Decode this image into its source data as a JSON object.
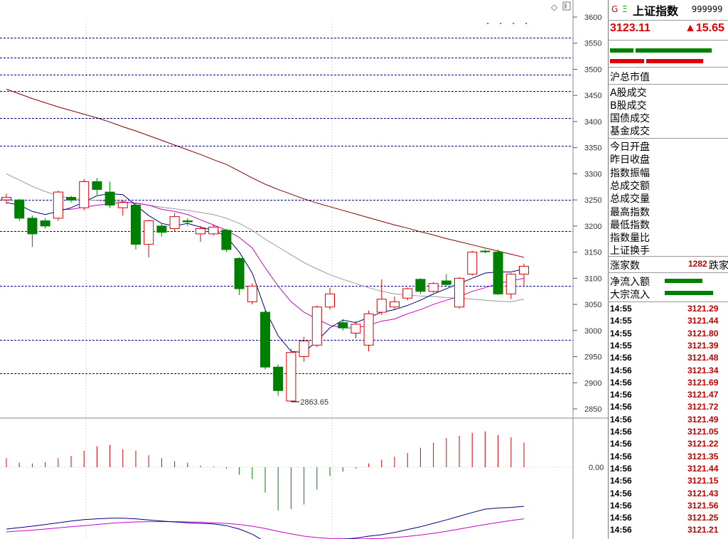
{
  "header": {
    "g_icon": "G",
    "e_icon": "Ξ",
    "name": "上证指数",
    "code": "999999",
    "price": "3123.11",
    "change": "▲15.65"
  },
  "labels": {
    "market_cap": "沪总市值",
    "turnover_group": [
      "A股成交",
      "B股成交",
      "国债成交",
      "基金成交"
    ],
    "stats_group": [
      "今日开盘",
      "昨日收盘",
      "指数振幅",
      "总成交额",
      "总成交量",
      "最高指数",
      "最低指数",
      "指数量比",
      "上证换手"
    ],
    "advancers": "涨家数",
    "advancers_value": "1282",
    "decliners_label": "跌家",
    "net_inflow": "净流入额",
    "block_inflow": "大宗流入"
  },
  "ticks": [
    {
      "time": "14:55",
      "price": "3121.29"
    },
    {
      "time": "14:55",
      "price": "3121.44"
    },
    {
      "time": "14:55",
      "price": "3121.80"
    },
    {
      "time": "14:55",
      "price": "3121.39"
    },
    {
      "time": "14:56",
      "price": "3121.48"
    },
    {
      "time": "14:56",
      "price": "3121.34"
    },
    {
      "time": "14:56",
      "price": "3121.69"
    },
    {
      "time": "14:56",
      "price": "3121.47"
    },
    {
      "time": "14:56",
      "price": "3121.72"
    },
    {
      "time": "14:56",
      "price": "3121.49"
    },
    {
      "time": "14:56",
      "price": "3121.05"
    },
    {
      "time": "14:56",
      "price": "3121.22"
    },
    {
      "time": "14:56",
      "price": "3121.35"
    },
    {
      "time": "14:56",
      "price": "3121.44"
    },
    {
      "time": "14:56",
      "price": "3121.15"
    },
    {
      "time": "14:56",
      "price": "3121.43"
    },
    {
      "time": "14:56",
      "price": "3121.56"
    },
    {
      "time": "14:56",
      "price": "3121.25"
    },
    {
      "time": "14:56",
      "price": "3121.21"
    }
  ],
  "colors": {
    "up": "#e00000",
    "down": "#008000",
    "ma5": "#000080",
    "ma10": "#cc00cc",
    "ma20": "#999999",
    "ma60": "#800000",
    "gridline": "#0000aa"
  },
  "chart_data": {
    "type": "candlestick",
    "y_axis": {
      "min": 2850,
      "max": 3600,
      "step": 50,
      "ticks": [
        "2850",
        "2900",
        "2950",
        "3000",
        "3050",
        "3100",
        "3150",
        "3200",
        "3250",
        "3300",
        "3350",
        "3400",
        "3450",
        "3500",
        "3550",
        "3600"
      ]
    },
    "low_annotation": "2863.65",
    "low_value": 2863.65,
    "horizontal_levels": [
      3560,
      3522,
      3490,
      3458,
      3407,
      3354,
      3250,
      3190,
      3086,
      2982,
      2918
    ],
    "candles": [
      {
        "o": 3250,
        "c": 3255,
        "h": 3262,
        "l": 3242
      },
      {
        "o": 3250,
        "c": 3215,
        "h": 3252,
        "l": 3210
      },
      {
        "o": 3215,
        "c": 3185,
        "h": 3220,
        "l": 3160
      },
      {
        "o": 3210,
        "c": 3200,
        "h": 3215,
        "l": 3195
      },
      {
        "o": 3215,
        "c": 3265,
        "h": 3268,
        "l": 3210
      },
      {
        "o": 3255,
        "c": 3250,
        "h": 3258,
        "l": 3245
      },
      {
        "o": 3235,
        "c": 3285,
        "h": 3290,
        "l": 3230
      },
      {
        "o": 3285,
        "c": 3270,
        "h": 3292,
        "l": 3260
      },
      {
        "o": 3265,
        "c": 3240,
        "h": 3285,
        "l": 3235
      },
      {
        "o": 3235,
        "c": 3245,
        "h": 3250,
        "l": 3220
      },
      {
        "o": 3240,
        "c": 3165,
        "h": 3242,
        "l": 3155
      },
      {
        "o": 3165,
        "c": 3210,
        "h": 3212,
        "l": 3140
      },
      {
        "o": 3200,
        "c": 3188,
        "h": 3205,
        "l": 3180
      },
      {
        "o": 3195,
        "c": 3218,
        "h": 3225,
        "l": 3190
      },
      {
        "o": 3210,
        "c": 3208,
        "h": 3215,
        "l": 3200
      },
      {
        "o": 3185,
        "c": 3195,
        "h": 3200,
        "l": 3170
      },
      {
        "o": 3185,
        "c": 3198,
        "h": 3203,
        "l": 3182
      },
      {
        "o": 3192,
        "c": 3155,
        "h": 3195,
        "l": 3150
      },
      {
        "o": 3138,
        "c": 3080,
        "h": 3140,
        "l": 3068
      },
      {
        "o": 3055,
        "c": 3085,
        "h": 3090,
        "l": 3050
      },
      {
        "o": 3035,
        "c": 2930,
        "h": 3040,
        "l": 2925
      },
      {
        "o": 2930,
        "c": 2885,
        "h": 2935,
        "l": 2875
      },
      {
        "o": 2865,
        "c": 2958,
        "h": 2965,
        "l": 2863.65
      },
      {
        "o": 2950,
        "c": 2980,
        "h": 2988,
        "l": 2940
      },
      {
        "o": 2972,
        "c": 3045,
        "h": 3048,
        "l": 2968
      },
      {
        "o": 3045,
        "c": 3070,
        "h": 3082,
        "l": 3040
      },
      {
        "o": 3015,
        "c": 3005,
        "h": 3022,
        "l": 3000
      },
      {
        "o": 2995,
        "c": 3012,
        "h": 3018,
        "l": 2985
      },
      {
        "o": 2972,
        "c": 3032,
        "h": 3038,
        "l": 2960
      },
      {
        "o": 3035,
        "c": 3060,
        "h": 3098,
        "l": 3030
      },
      {
        "o": 3045,
        "c": 3055,
        "h": 3065,
        "l": 3040
      },
      {
        "o": 3062,
        "c": 3080,
        "h": 3082,
        "l": 3058
      },
      {
        "o": 3098,
        "c": 3075,
        "h": 3100,
        "l": 3070
      },
      {
        "o": 3075,
        "c": 3090,
        "h": 3093,
        "l": 3072
      },
      {
        "o": 3095,
        "c": 3088,
        "h": 3108,
        "l": 3085
      },
      {
        "o": 3045,
        "c": 3100,
        "h": 3102,
        "l": 3042
      },
      {
        "o": 3108,
        "c": 3150,
        "h": 3153,
        "l": 3105
      },
      {
        "o": 3152,
        "c": 3151,
        "h": 3155,
        "l": 3148
      },
      {
        "o": 3150,
        "c": 3070,
        "h": 3155,
        "l": 3068
      },
      {
        "o": 3070,
        "c": 3108,
        "h": 3110,
        "l": 3060
      },
      {
        "o": 3108,
        "c": 3123,
        "h": 3128,
        "l": 3085
      }
    ],
    "ma5": [
      3245,
      3240,
      3228,
      3222,
      3228,
      3235,
      3246,
      3258,
      3262,
      3260,
      3240,
      3220,
      3205,
      3200,
      3205,
      3198,
      3192,
      3180,
      3150,
      3110,
      3040,
      2990,
      2960,
      2958,
      2980,
      3005,
      3020,
      3015,
      3025,
      3035,
      3040,
      3048,
      3058,
      3070,
      3080,
      3090,
      3100,
      3110,
      3112,
      3112,
      3118
    ],
    "ma10": [
      null,
      null,
      null,
      null,
      3232,
      3232,
      3236,
      3240,
      3242,
      3246,
      3244,
      3240,
      3232,
      3228,
      3222,
      3212,
      3202,
      3192,
      3178,
      3158,
      3120,
      3085,
      3055,
      3035,
      3022,
      3010,
      3005,
      3005,
      3010,
      3018,
      3022,
      3032,
      3040,
      3050,
      3058,
      3065,
      3075,
      3082,
      3090,
      3095,
      3100
    ],
    "ma20": [
      3300,
      3288,
      3276,
      3266,
      3258,
      3253,
      3250,
      3249,
      3248,
      3247,
      3243,
      3240,
      3236,
      3233,
      3230,
      3226,
      3222,
      3215,
      3205,
      3192,
      3175,
      3160,
      3145,
      3130,
      3118,
      3107,
      3098,
      3090,
      3082,
      3075,
      3070,
      3068,
      3066,
      3065,
      3063,
      3062,
      3060,
      3058,
      3056,
      3055,
      3060
    ],
    "ma60": [
      3462,
      3453,
      3444,
      3436,
      3428,
      3421,
      3414,
      3407,
      3399,
      3390,
      3382,
      3373,
      3364,
      3355,
      3346,
      3337,
      3327,
      3318,
      3305,
      3292,
      3280,
      3270,
      3261,
      3252,
      3244,
      3237,
      3230,
      3223,
      3216,
      3209,
      3202,
      3196,
      3189,
      3183,
      3176,
      3170,
      3164,
      3158,
      3152,
      3146,
      3140
    ],
    "macd_zero_label": "0.00",
    "macd_hist": [
      0.12,
      0.06,
      0.05,
      0.07,
      0.12,
      0.15,
      0.22,
      0.28,
      0.3,
      0.24,
      0.22,
      0.16,
      0.12,
      0.08,
      0.06,
      0.02,
      0.01,
      -0.02,
      -0.1,
      -0.16,
      -0.34,
      -0.58,
      -0.56,
      -0.5,
      -0.3,
      -0.12,
      -0.06,
      -0.02,
      0.05,
      0.1,
      0.14,
      0.19,
      0.26,
      0.33,
      0.39,
      0.42,
      0.46,
      0.48,
      0.43,
      0.4,
      0.33
    ],
    "dif": [
      -0.8,
      -0.75,
      -0.7,
      -0.64,
      -0.58,
      -0.52,
      -0.47,
      -0.44,
      -0.42,
      -0.42,
      -0.44,
      -0.48,
      -0.52,
      -0.55,
      -0.58,
      -0.6,
      -0.62,
      -0.68,
      -0.8,
      -0.98,
      -1.25,
      -1.4,
      -1.44,
      -1.42,
      -1.32,
      -1.22,
      -1.16,
      -1.12,
      -1.05,
      -1.0,
      -0.92,
      -0.82,
      -0.72,
      -0.6,
      -0.48,
      -0.35,
      -0.22,
      -0.1,
      -0.06,
      -0.04,
      0.0
    ],
    "dea": [
      -0.9,
      -0.87,
      -0.84,
      -0.8,
      -0.76,
      -0.72,
      -0.68,
      -0.64,
      -0.6,
      -0.57,
      -0.55,
      -0.54,
      -0.54,
      -0.54,
      -0.55,
      -0.56,
      -0.58,
      -0.6,
      -0.64,
      -0.7,
      -0.78,
      -0.88,
      -0.97,
      -1.05,
      -1.1,
      -1.13,
      -1.14,
      -1.15,
      -1.14,
      -1.13,
      -1.1,
      -1.06,
      -1.01,
      -0.95,
      -0.88,
      -0.8,
      -0.72,
      -0.64,
      -0.57,
      -0.5,
      -0.44
    ]
  }
}
